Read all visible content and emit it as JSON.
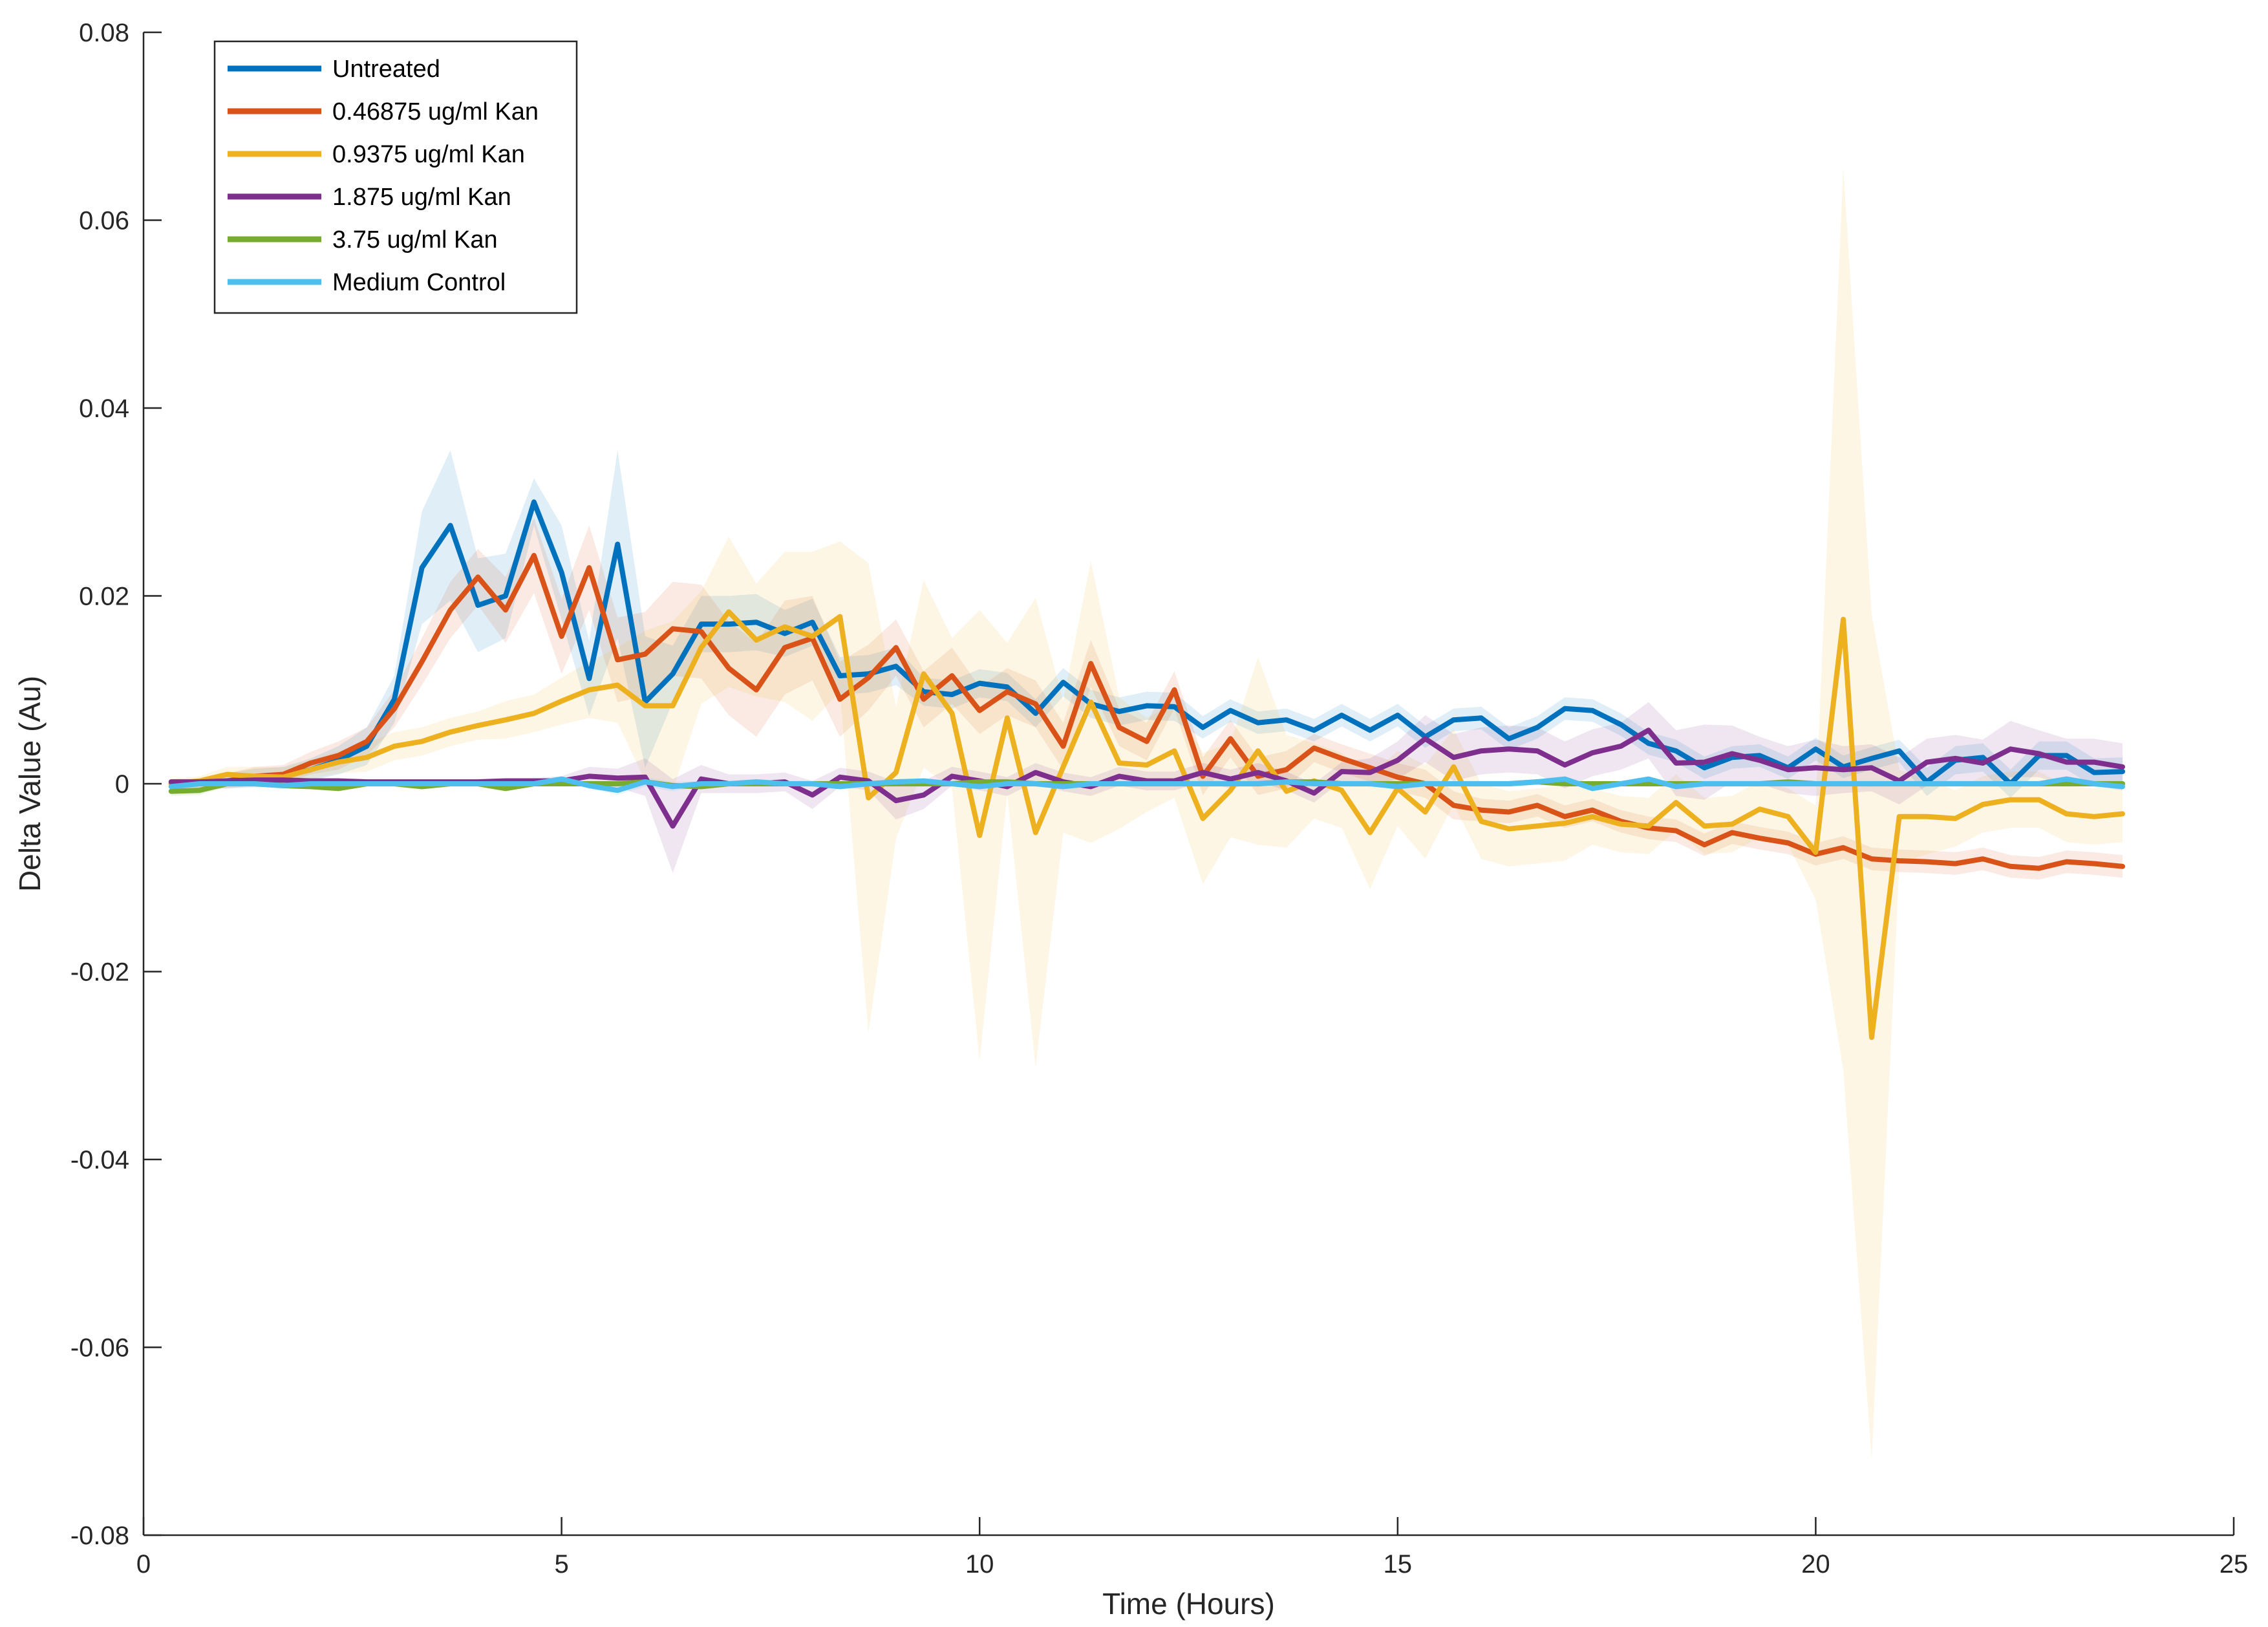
{
  "chart_data": {
    "type": "line",
    "title": "",
    "xlabel": "Time (Hours)",
    "ylabel": "Delta Value (Au)",
    "xlim": [
      0,
      25
    ],
    "ylim": [
      -0.08,
      0.08
    ],
    "xticks": [
      0,
      5,
      10,
      15,
      20,
      25
    ],
    "yticks": [
      -0.08,
      -0.06,
      -0.04,
      -0.02,
      0,
      0.02,
      0.04,
      0.06,
      0.08
    ],
    "xtick_labels": [
      "0",
      "5",
      "10",
      "15",
      "20",
      "25"
    ],
    "ytick_labels": [
      "-0.08",
      "-0.06",
      "-0.04",
      "-0.02",
      "0",
      "0.02",
      "0.04",
      "0.06",
      "0.08"
    ],
    "grid": false,
    "legend_position": "top-left",
    "x": [
      0.33,
      0.67,
      1.0,
      1.33,
      1.67,
      2.0,
      2.33,
      2.67,
      3.0,
      3.33,
      3.67,
      4.0,
      4.33,
      4.67,
      5.0,
      5.33,
      5.67,
      6.0,
      6.33,
      6.67,
      7.0,
      7.33,
      7.67,
      8.0,
      8.33,
      8.67,
      9.0,
      9.33,
      9.67,
      10.0,
      10.33,
      10.67,
      11.0,
      11.33,
      11.67,
      12.0,
      12.33,
      12.67,
      13.0,
      13.33,
      13.67,
      14.0,
      14.33,
      14.67,
      15.0,
      15.33,
      15.67,
      16.0,
      16.33,
      16.67,
      17.0,
      17.33,
      17.67,
      18.0,
      18.33,
      18.67,
      19.0,
      19.33,
      19.67,
      20.0,
      20.33,
      20.67,
      21.0,
      21.33,
      21.67,
      22.0,
      22.33,
      22.67,
      23.0,
      23.33,
      23.67
    ],
    "series": [
      {
        "name": "Untreated",
        "color": "#0072BD",
        "band_color": "#0072BD",
        "values": [
          0.0,
          0.0,
          0.0003,
          0.0006,
          0.0008,
          0.0015,
          0.0025,
          0.004,
          0.009,
          0.023,
          0.0275,
          0.019,
          0.02,
          0.03,
          0.0225,
          0.0112,
          0.0255,
          0.0087,
          0.0117,
          0.017,
          0.017,
          0.0172,
          0.016,
          0.0172,
          0.0115,
          0.0117,
          0.0125,
          0.0098,
          0.0095,
          0.0107,
          0.0103,
          0.0075,
          0.0108,
          0.0085,
          0.0077,
          0.0083,
          0.0082,
          0.006,
          0.0078,
          0.0065,
          0.0068,
          0.0057,
          0.0073,
          0.0057,
          0.0073,
          0.005,
          0.0068,
          0.007,
          0.0048,
          0.006,
          0.008,
          0.0078,
          0.0063,
          0.0043,
          0.0035,
          0.0017,
          0.0028,
          0.003,
          0.0017,
          0.0037,
          0.0018,
          0.0027,
          0.0035,
          0.0002,
          0.0025,
          0.0028,
          0.0,
          0.003,
          0.003,
          0.0012,
          0.0013
        ],
        "errors": [
          0.0005,
          0.0005,
          0.0008,
          0.001,
          0.001,
          0.0012,
          0.0015,
          0.002,
          0.0025,
          0.006,
          0.008,
          0.005,
          0.0045,
          0.0025,
          0.005,
          0.004,
          0.01,
          0.007,
          0.003,
          0.003,
          0.003,
          0.003,
          0.0025,
          0.0025,
          0.002,
          0.002,
          0.002,
          0.0015,
          0.0015,
          0.0015,
          0.0015,
          0.0015,
          0.0015,
          0.0015,
          0.0015,
          0.0015,
          0.0015,
          0.0012,
          0.0012,
          0.0012,
          0.0012,
          0.0012,
          0.0012,
          0.0012,
          0.0012,
          0.0012,
          0.0012,
          0.0012,
          0.0012,
          0.0012,
          0.0012,
          0.0012,
          0.0012,
          0.0012,
          0.0012,
          0.0012,
          0.0012,
          0.0012,
          0.0012,
          0.0012,
          0.0012,
          0.0012,
          0.0012,
          0.0015,
          0.0015,
          0.0015,
          0.0015,
          0.0015,
          0.0015,
          0.0015,
          0.0015
        ]
      },
      {
        "name": "0.46875 ug/ml Kan",
        "color": "#D95319",
        "band_color": "#D95319",
        "values": [
          0.0,
          0.0,
          0.0003,
          0.0008,
          0.001,
          0.0022,
          0.003,
          0.0045,
          0.008,
          0.013,
          0.0185,
          0.022,
          0.0185,
          0.0243,
          0.0157,
          0.023,
          0.0132,
          0.0138,
          0.0165,
          0.0162,
          0.0123,
          0.01,
          0.0145,
          0.0155,
          0.009,
          0.0113,
          0.0145,
          0.009,
          0.0115,
          0.0078,
          0.0098,
          0.0085,
          0.004,
          0.0128,
          0.006,
          0.0045,
          0.01,
          0.0008,
          0.0048,
          0.0008,
          0.0015,
          0.0038,
          0.0027,
          0.0017,
          0.0007,
          0.0,
          -0.0023,
          -0.0028,
          -0.003,
          -0.0023,
          -0.0035,
          -0.0028,
          -0.004,
          -0.0047,
          -0.005,
          -0.0065,
          -0.0052,
          -0.0058,
          -0.0063,
          -0.0075,
          -0.0068,
          -0.008,
          -0.0082,
          -0.0083,
          -0.0085,
          -0.008,
          -0.0088,
          -0.009,
          -0.0083,
          -0.0085,
          -0.0088
        ],
        "errors": [
          0.0005,
          0.0005,
          0.0008,
          0.001,
          0.001,
          0.0012,
          0.0015,
          0.0015,
          0.002,
          0.0025,
          0.003,
          0.003,
          0.0035,
          0.004,
          0.004,
          0.0045,
          0.0045,
          0.0045,
          0.005,
          0.005,
          0.005,
          0.005,
          0.005,
          0.0045,
          0.004,
          0.0035,
          0.003,
          0.003,
          0.003,
          0.0025,
          0.0025,
          0.0025,
          0.0025,
          0.0025,
          0.002,
          0.002,
          0.002,
          0.002,
          0.002,
          0.002,
          0.002,
          0.0015,
          0.0015,
          0.0015,
          0.0015,
          0.0015,
          0.0015,
          0.0012,
          0.0012,
          0.0012,
          0.0012,
          0.0012,
          0.0012,
          0.0012,
          0.0012,
          0.0012,
          0.0012,
          0.0012,
          0.0012,
          0.0012,
          0.0012,
          0.0012,
          0.0012,
          0.0012,
          0.0012,
          0.0012,
          0.0012,
          0.0012,
          0.0012,
          0.0012,
          0.0012
        ]
      },
      {
        "name": "0.9375 ug/ml Kan",
        "color": "#EDB120",
        "band_color": "#EDB120",
        "values": [
          0.0,
          0.0003,
          0.001,
          0.0008,
          0.0007,
          0.0015,
          0.0023,
          0.0028,
          0.004,
          0.0045,
          0.0055,
          0.0062,
          0.0068,
          0.0075,
          0.0088,
          0.01,
          0.0105,
          0.0083,
          0.0083,
          0.0145,
          0.0183,
          0.0153,
          0.0167,
          0.0157,
          0.0178,
          -0.0015,
          0.0012,
          0.0117,
          0.0075,
          -0.0055,
          0.007,
          -0.0052,
          0.0018,
          0.0087,
          0.0022,
          0.002,
          0.0035,
          -0.0037,
          -0.0007,
          0.0035,
          -0.0008,
          0.0003,
          -0.0007,
          -0.0052,
          -0.0005,
          -0.003,
          0.0018,
          -0.004,
          -0.0048,
          -0.0045,
          -0.0042,
          -0.0035,
          -0.0043,
          -0.0045,
          -0.002,
          -0.0045,
          -0.0043,
          -0.0027,
          -0.0035,
          -0.0073,
          0.0175,
          -0.027,
          -0.0035,
          -0.0035,
          -0.0037,
          -0.0022,
          -0.0017,
          -0.0017,
          -0.0032,
          -0.0035,
          -0.0032
        ],
        "errors": [
          0.0005,
          0.0005,
          0.0008,
          0.001,
          0.001,
          0.001,
          0.0012,
          0.0015,
          0.0015,
          0.0015,
          0.0015,
          0.0015,
          0.002,
          0.002,
          0.0025,
          0.003,
          0.004,
          0.008,
          0.009,
          0.006,
          0.008,
          0.006,
          0.008,
          0.009,
          0.008,
          0.025,
          0.007,
          0.01,
          0.008,
          0.024,
          0.008,
          0.025,
          0.007,
          0.015,
          0.007,
          0.005,
          0.005,
          0.007,
          0.005,
          0.01,
          0.006,
          0.004,
          0.004,
          0.006,
          0.004,
          0.005,
          0.004,
          0.004,
          0.004,
          0.004,
          0.004,
          0.003,
          0.003,
          0.003,
          0.003,
          0.003,
          0.003,
          0.003,
          0.003,
          0.005,
          0.048,
          0.045,
          0.005,
          0.004,
          0.003,
          0.003,
          0.003,
          0.003,
          0.003,
          0.003,
          0.003
        ]
      },
      {
        "name": "1.875 ug/ml Kan",
        "color": "#7E2F8E",
        "band_color": "#7E2F8E",
        "values": [
          0.0002,
          0.0002,
          0.0003,
          0.0004,
          0.0004,
          0.0003,
          0.0003,
          0.0002,
          0.0002,
          0.0002,
          0.0002,
          0.0002,
          0.0003,
          0.0003,
          0.0003,
          0.0008,
          0.0006,
          0.0007,
          -0.0045,
          0.0005,
          0.0,
          0.0,
          0.0002,
          -0.0012,
          0.0007,
          0.0003,
          -0.0018,
          -0.0012,
          0.0008,
          0.0003,
          -0.0003,
          0.0012,
          0.0002,
          -0.0003,
          0.0008,
          0.0003,
          0.0003,
          0.0012,
          0.0005,
          0.0012,
          0.0003,
          -0.001,
          0.0013,
          0.0012,
          0.0025,
          0.0048,
          0.0028,
          0.0035,
          0.0037,
          0.0035,
          0.002,
          0.0033,
          0.004,
          0.0057,
          0.0022,
          0.0023,
          0.0032,
          0.0025,
          0.0015,
          0.0017,
          0.0015,
          0.0017,
          0.0003,
          0.0023,
          0.0027,
          0.0022,
          0.0037,
          0.0032,
          0.0023,
          0.0023,
          0.0018
        ],
        "errors": [
          0.0003,
          0.0003,
          0.0003,
          0.0003,
          0.0003,
          0.0003,
          0.0003,
          0.0003,
          0.0003,
          0.0003,
          0.0003,
          0.0003,
          0.0003,
          0.0003,
          0.0005,
          0.001,
          0.001,
          0.002,
          0.005,
          0.0015,
          0.001,
          0.001,
          0.001,
          0.0015,
          0.001,
          0.001,
          0.002,
          0.0015,
          0.001,
          0.001,
          0.001,
          0.001,
          0.001,
          0.001,
          0.001,
          0.001,
          0.001,
          0.001,
          0.001,
          0.001,
          0.001,
          0.001,
          0.001,
          0.0015,
          0.002,
          0.0025,
          0.0025,
          0.0025,
          0.0025,
          0.0025,
          0.0025,
          0.0025,
          0.0025,
          0.003,
          0.0035,
          0.004,
          0.003,
          0.0025,
          0.0025,
          0.003,
          0.0025,
          0.0025,
          0.0025,
          0.0025,
          0.0025,
          0.0025,
          0.003,
          0.0025,
          0.0025,
          0.0025,
          0.0025
        ]
      },
      {
        "name": "3.75 ug/ml Kan",
        "color": "#77AC30",
        "band_color": "#77AC30",
        "values": [
          -0.0008,
          -0.0007,
          0.0,
          0.0,
          -0.0002,
          -0.0003,
          -0.0005,
          0.0,
          0.0,
          -0.0003,
          0.0,
          0.0,
          -0.0005,
          0.0,
          0.0,
          0.0,
          0.0,
          0.0002,
          -0.0002,
          -0.0003,
          0.0,
          0.0,
          0.0,
          0.0,
          0.0,
          0.0,
          0.0,
          0.0,
          0.0,
          0.0002,
          0.0002,
          0.0,
          0.0,
          0.0,
          0.0,
          0.0,
          0.0,
          0.0,
          0.0,
          0.0,
          0.0002,
          0.0002,
          0.0,
          0.0,
          0.0,
          0.0,
          0.0,
          0.0,
          0.0,
          0.0002,
          0.0,
          0.0,
          0.0,
          0.0,
          0.0,
          0.0,
          0.0,
          0.0,
          0.0002,
          0.0,
          0.0,
          0.0,
          0.0,
          0.0,
          0.0,
          0.0,
          0.0,
          0.0,
          0.0,
          0.0,
          0.0
        ],
        "errors": [
          0.0005,
          0.0005,
          0.0003,
          0.0003,
          0.0003,
          0.0003,
          0.0003,
          0.0003,
          0.0003,
          0.0003,
          0.0003,
          0.0003,
          0.0003,
          0.0003,
          0.0003,
          0.0003,
          0.0003,
          0.0003,
          0.0003,
          0.0003,
          0.0003,
          0.0003,
          0.0003,
          0.0003,
          0.0003,
          0.0003,
          0.0003,
          0.0003,
          0.0003,
          0.0003,
          0.0003,
          0.0003,
          0.0003,
          0.0003,
          0.0003,
          0.0003,
          0.0003,
          0.0003,
          0.0003,
          0.0003,
          0.0003,
          0.0003,
          0.0003,
          0.0003,
          0.0003,
          0.0003,
          0.0003,
          0.0003,
          0.0003,
          0.0003,
          0.0003,
          0.0003,
          0.0003,
          0.0003,
          0.0003,
          0.0003,
          0.0003,
          0.0003,
          0.0003,
          0.0003,
          0.0003,
          0.0003,
          0.0003,
          0.0003,
          0.0003,
          0.0003,
          0.0003,
          0.0003,
          0.0003,
          0.0003,
          0.0003
        ]
      },
      {
        "name": "Medium Control",
        "color": "#4DBEEE",
        "band_color": "#4DBEEE",
        "values": [
          -0.0003,
          0.0,
          0.0,
          0.0,
          -0.0002,
          0.0,
          0.0,
          0.0,
          0.0,
          0.0,
          0.0,
          0.0,
          0.0,
          0.0,
          0.0005,
          -0.0002,
          -0.0007,
          0.0002,
          -0.0003,
          0.0,
          0.0,
          0.0002,
          0.0,
          0.0,
          -0.0003,
          0.0,
          0.0002,
          0.0003,
          0.0,
          -0.0003,
          0.0,
          0.0,
          -0.0003,
          0.0,
          0.0,
          0.0,
          0.0,
          0.0,
          0.0,
          0.0,
          0.0002,
          0.0,
          0.0,
          0.0,
          -0.0003,
          0.0,
          0.0,
          0.0,
          0.0,
          0.0002,
          0.0005,
          -0.0005,
          0.0,
          0.0005,
          -0.0003,
          0.0,
          0.0,
          0.0,
          0.0,
          0.0,
          0.0,
          0.0,
          0.0,
          0.0,
          0.0,
          0.0,
          0.0,
          0.0,
          0.0005,
          0.0,
          -0.0003
        ],
        "errors": [
          0.0003,
          0.0003,
          0.0003,
          0.0003,
          0.0003,
          0.0003,
          0.0003,
          0.0003,
          0.0003,
          0.0003,
          0.0003,
          0.0003,
          0.0003,
          0.0003,
          0.0003,
          0.0003,
          0.0005,
          0.0005,
          0.0005,
          0.0003,
          0.0003,
          0.0003,
          0.0003,
          0.0003,
          0.0003,
          0.0003,
          0.0003,
          0.0003,
          0.0003,
          0.0003,
          0.0003,
          0.0003,
          0.0003,
          0.0003,
          0.0003,
          0.0003,
          0.0003,
          0.0003,
          0.0003,
          0.0003,
          0.0003,
          0.0003,
          0.0003,
          0.0003,
          0.0003,
          0.0003,
          0.0003,
          0.0003,
          0.0003,
          0.0003,
          0.0003,
          0.0003,
          0.0003,
          0.0003,
          0.0003,
          0.0003,
          0.0003,
          0.0003,
          0.0003,
          0.0003,
          0.0003,
          0.0003,
          0.0003,
          0.0003,
          0.0003,
          0.0003,
          0.0003,
          0.0003,
          0.0003,
          0.0003,
          0.0003
        ]
      }
    ]
  }
}
